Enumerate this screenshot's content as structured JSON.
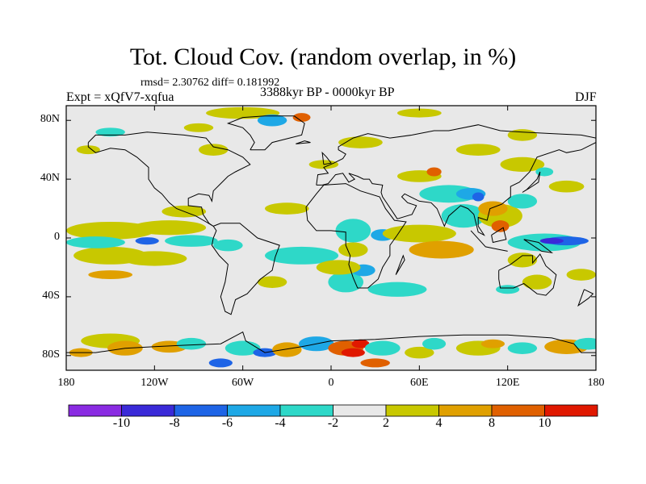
{
  "title": "Tot. Cloud Cov. (random overlap, in %)",
  "stats": "rmsd= 2.30762 diff= 0.181992",
  "expt": "Expt = xQfV7-xqfua",
  "period": "3388kyr BP - 0000kyr BP",
  "season": "DJF",
  "map": {
    "lon_range": [
      -180,
      180
    ],
    "lat_range": [
      -90,
      90
    ],
    "x_tick_labels": [
      "180",
      "120W",
      "60W",
      "0",
      "60E",
      "120E",
      "180"
    ],
    "y_tick_labels": [
      "80N",
      "40N",
      "0",
      "40S",
      "80S"
    ]
  },
  "colorbar": {
    "colors": [
      "#8a2be2",
      "#3a2ad8",
      "#1e64e6",
      "#1ea8e6",
      "#2ed8c8",
      "#e8e8e8",
      "#c8c800",
      "#e0a000",
      "#e06000",
      "#e01800"
    ],
    "tick_labels": [
      "-10",
      "-8",
      "-6",
      "-4",
      "-2",
      "2",
      "4",
      "8",
      "10"
    ]
  },
  "anomaly_colors": {
    "pos_light": "#c8c800",
    "pos_mid": "#e0a000",
    "pos_strong": "#e06000",
    "pos_max": "#e01800",
    "neg_light": "#2ed8c8",
    "neg_mid": "#1ea8e6",
    "neg_strong": "#1e64e6",
    "neg_max": "#3a2ad8",
    "neutral": "#e8e8e8"
  }
}
